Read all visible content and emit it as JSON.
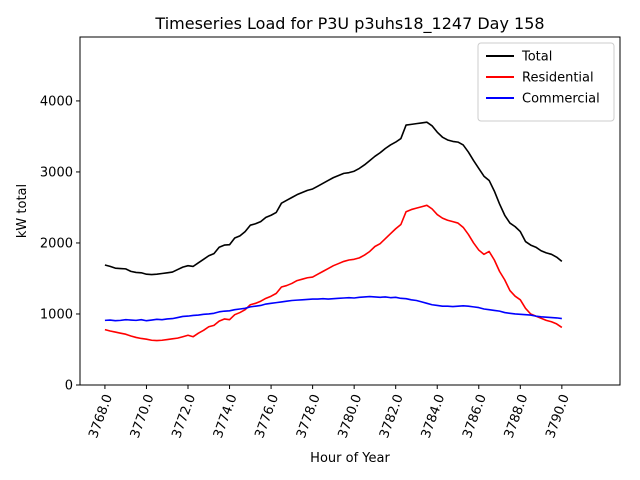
{
  "chart_data": {
    "type": "line",
    "title": "Timeseries Load for P3U p3uhs18_1247  Day 158",
    "xlabel": "Hour of Year",
    "ylabel": "kW total",
    "xlim": [
      3766.8,
      3792.8
    ],
    "ylim": [
      0,
      4900
    ],
    "xticks": [
      3768,
      3770,
      3772,
      3774,
      3776,
      3778,
      3780,
      3782,
      3784,
      3786,
      3788,
      3790
    ],
    "xtick_labels": [
      "3768.0",
      "3770.0",
      "3772.0",
      "3774.0",
      "3776.0",
      "3778.0",
      "3780.0",
      "3782.0",
      "3784.0",
      "3786.0",
      "3788.0",
      "3790.0"
    ],
    "yticks": [
      0,
      1000,
      2000,
      3000,
      4000
    ],
    "ytick_labels": [
      "0",
      "1000",
      "2000",
      "3000",
      "4000"
    ],
    "grid": false,
    "legend_position": "upper right",
    "x_start": 3768.0,
    "x_step": 0.25,
    "series": [
      {
        "name": "Total",
        "color": "#000000",
        "values": [
          1690,
          1670,
          1645,
          1640,
          1635,
          1600,
          1585,
          1580,
          1560,
          1555,
          1560,
          1570,
          1580,
          1590,
          1625,
          1660,
          1680,
          1670,
          1720,
          1770,
          1820,
          1850,
          1940,
          1970,
          1975,
          2070,
          2100,
          2160,
          2250,
          2270,
          2300,
          2360,
          2390,
          2430,
          2560,
          2600,
          2640,
          2680,
          2710,
          2740,
          2760,
          2800,
          2840,
          2880,
          2920,
          2950,
          2980,
          2990,
          3010,
          3050,
          3100,
          3160,
          3220,
          3270,
          3330,
          3380,
          3420,
          3470,
          3660,
          3670,
          3680,
          3690,
          3700,
          3650,
          3560,
          3490,
          3450,
          3430,
          3420,
          3380,
          3280,
          3160,
          3050,
          2940,
          2880,
          2730,
          2550,
          2390,
          2280,
          2230,
          2160,
          2020,
          1970,
          1940,
          1890,
          1860,
          1840,
          1800,
          1740
        ]
      },
      {
        "name": "Residential",
        "color": "#ff0000",
        "values": [
          780,
          760,
          745,
          730,
          715,
          690,
          670,
          655,
          645,
          630,
          625,
          630,
          640,
          650,
          660,
          680,
          700,
          680,
          730,
          770,
          820,
          840,
          900,
          930,
          920,
          990,
          1020,
          1060,
          1130,
          1150,
          1180,
          1220,
          1250,
          1290,
          1380,
          1400,
          1430,
          1470,
          1490,
          1510,
          1520,
          1560,
          1600,
          1640,
          1680,
          1710,
          1740,
          1760,
          1770,
          1790,
          1830,
          1880,
          1950,
          1990,
          2060,
          2130,
          2200,
          2260,
          2440,
          2470,
          2490,
          2510,
          2530,
          2480,
          2400,
          2350,
          2320,
          2300,
          2280,
          2220,
          2120,
          2000,
          1900,
          1840,
          1880,
          1760,
          1600,
          1480,
          1330,
          1250,
          1200,
          1080,
          1000,
          970,
          940,
          910,
          890,
          860,
          810
        ]
      },
      {
        "name": "Commercial",
        "color": "#0000ff",
        "values": [
          910,
          915,
          905,
          910,
          920,
          915,
          910,
          920,
          905,
          915,
          925,
          920,
          930,
          935,
          950,
          965,
          970,
          980,
          985,
          995,
          1000,
          1010,
          1030,
          1040,
          1045,
          1060,
          1070,
          1080,
          1100,
          1110,
          1120,
          1140,
          1150,
          1160,
          1170,
          1180,
          1190,
          1195,
          1200,
          1205,
          1210,
          1210,
          1215,
          1210,
          1215,
          1220,
          1225,
          1230,
          1225,
          1235,
          1240,
          1245,
          1240,
          1235,
          1240,
          1230,
          1235,
          1220,
          1215,
          1200,
          1190,
          1170,
          1150,
          1130,
          1120,
          1110,
          1110,
          1105,
          1110,
          1115,
          1110,
          1100,
          1090,
          1070,
          1060,
          1050,
          1040,
          1020,
          1010,
          1000,
          995,
          990,
          985,
          970,
          960,
          955,
          950,
          945,
          935
        ]
      }
    ]
  }
}
